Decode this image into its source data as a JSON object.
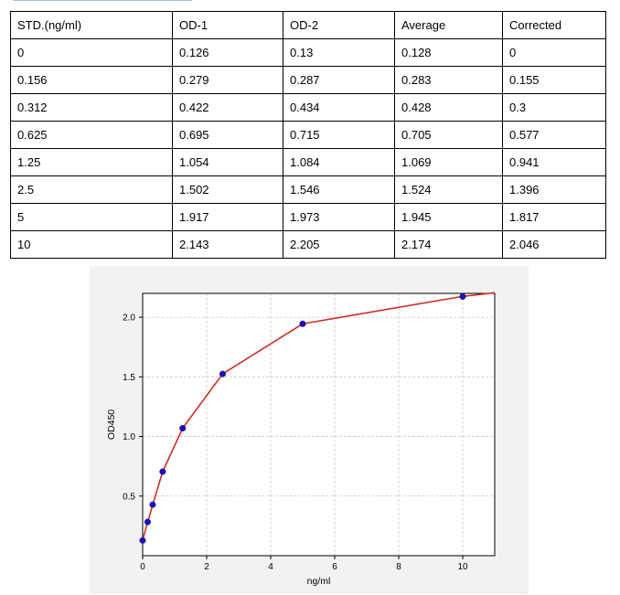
{
  "table": {
    "headers": [
      "STD.(ng/ml)",
      "OD-1",
      "OD-2",
      "Average",
      "Corrected"
    ],
    "rows": [
      [
        "0",
        "0.126",
        "0.13",
        "0.128",
        "0"
      ],
      [
        "0.156",
        "0.279",
        "0.287",
        "0.283",
        "0.155"
      ],
      [
        "0.312",
        "0.422",
        "0.434",
        "0.428",
        "0.3"
      ],
      [
        "0.625",
        "0.695",
        "0.715",
        "0.705",
        "0.577"
      ],
      [
        "1.25",
        "1.054",
        "1.084",
        "1.069",
        "0.941"
      ],
      [
        "2.5",
        "1.502",
        "1.546",
        "1.524",
        "1.396"
      ],
      [
        "5",
        "1.917",
        "1.973",
        "1.945",
        "1.817"
      ],
      [
        "10",
        "2.143",
        "2.205",
        "2.174",
        "2.046"
      ]
    ]
  },
  "chart_data": {
    "type": "scatter",
    "title": "",
    "xlabel": "ng/ml",
    "ylabel": "OD450",
    "xlim": [
      0,
      11
    ],
    "ylim": [
      0,
      2.2
    ],
    "x_ticks": [
      "0",
      "2",
      "4",
      "6",
      "8",
      "10"
    ],
    "y_ticks": [
      "0.5",
      "1.0",
      "1.5",
      "2.0"
    ],
    "grid": true,
    "series": [
      {
        "type": "scatter",
        "x": [
          0,
          0.156,
          0.312,
          0.625,
          1.25,
          2.5,
          5,
          10
        ],
        "y": [
          0.128,
          0.283,
          0.428,
          0.705,
          1.069,
          1.524,
          1.945,
          2.174
        ]
      },
      {
        "type": "line",
        "x": [
          0,
          0.156,
          0.312,
          0.625,
          1.25,
          2.5,
          5,
          10,
          11
        ],
        "y": [
          0.13,
          0.28,
          0.425,
          0.705,
          1.07,
          1.525,
          1.945,
          2.175,
          2.205
        ]
      }
    ],
    "colors": {
      "points": "#1a0fb8",
      "curve": "#cc2e22",
      "grid": "#c8c8c8"
    }
  }
}
